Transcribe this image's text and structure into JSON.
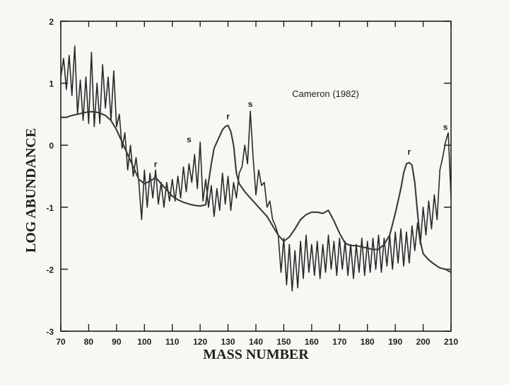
{
  "chart_data": {
    "type": "line",
    "title": "",
    "xlabel": "MASS NUMBER",
    "ylabel": "LOG ABUNDANCE",
    "xlim": [
      70,
      210
    ],
    "ylim": [
      -3,
      2
    ],
    "x_ticks": [
      "70",
      "80",
      "90",
      "100",
      "110",
      "120",
      "130",
      "140",
      "150",
      "160",
      "170",
      "180",
      "190",
      "200",
      "210"
    ],
    "y_ticks": [
      "2",
      "1",
      "0",
      "-1",
      "-2",
      "-3"
    ],
    "grid": false,
    "annotation": "Cameron (1982)",
    "peak_labels": [
      {
        "text": "r",
        "x": 104,
        "y": -0.35
      },
      {
        "text": "s",
        "x": 116,
        "y": 0.05
      },
      {
        "text": "r",
        "x": 130,
        "y": 0.42
      },
      {
        "text": "s",
        "x": 138,
        "y": 0.62
      },
      {
        "text": "r",
        "x": 195,
        "y": -0.15
      },
      {
        "text": "s",
        "x": 208,
        "y": 0.25
      }
    ],
    "series": [
      {
        "color": "#2a2a2a",
        "points": [
          [
            70,
            1.1
          ],
          [
            71,
            1.4
          ],
          [
            72,
            0.9
          ],
          [
            73,
            1.45
          ],
          [
            74,
            0.8
          ],
          [
            75,
            1.6
          ],
          [
            76,
            0.5
          ],
          [
            77,
            1.05
          ],
          [
            78,
            0.4
          ],
          [
            79,
            1.1
          ],
          [
            80,
            0.35
          ],
          [
            81,
            1.5
          ],
          [
            82,
            0.3
          ],
          [
            83,
            1.0
          ],
          [
            84,
            0.35
          ],
          [
            85,
            1.3
          ],
          [
            86,
            0.6
          ],
          [
            87,
            1.1
          ],
          [
            88,
            0.4
          ],
          [
            89,
            1.2
          ],
          [
            90,
            0.3
          ],
          [
            91,
            0.5
          ],
          [
            92,
            -0.05
          ],
          [
            93,
            0.2
          ],
          [
            94,
            -0.4
          ],
          [
            95,
            0.0
          ],
          [
            96,
            -0.5
          ],
          [
            97,
            -0.2
          ],
          [
            98,
            -0.6
          ],
          [
            99,
            -1.2
          ],
          [
            100,
            -0.4
          ],
          [
            101,
            -1.0
          ],
          [
            102,
            -0.45
          ],
          [
            103,
            -0.85
          ],
          [
            104,
            -0.4
          ],
          [
            105,
            -0.95
          ],
          [
            106,
            -0.6
          ],
          [
            107,
            -1.0
          ],
          [
            108,
            -0.6
          ],
          [
            109,
            -0.9
          ],
          [
            110,
            -0.55
          ],
          [
            111,
            -0.9
          ],
          [
            112,
            -0.5
          ],
          [
            113,
            -0.85
          ],
          [
            114,
            -0.35
          ],
          [
            115,
            -0.75
          ],
          [
            116,
            -0.3
          ],
          [
            117,
            -0.6
          ],
          [
            118,
            -0.15
          ],
          [
            119,
            -0.7
          ],
          [
            120,
            0.05
          ],
          [
            121,
            -0.9
          ],
          [
            122,
            -0.55
          ],
          [
            123,
            -1.0
          ],
          [
            124,
            -0.65
          ],
          [
            125,
            -1.15
          ],
          [
            126,
            -0.7
          ],
          [
            127,
            -1.05
          ],
          [
            128,
            -0.45
          ],
          [
            129,
            -0.95
          ],
          [
            130,
            -0.5
          ],
          [
            131,
            -1.05
          ],
          [
            132,
            -0.6
          ],
          [
            133,
            -0.85
          ],
          [
            134,
            -0.45
          ],
          [
            135,
            -0.35
          ],
          [
            136,
            0.0
          ],
          [
            137,
            -0.3
          ],
          [
            138,
            0.55
          ],
          [
            139,
            -0.2
          ],
          [
            140,
            -0.8
          ],
          [
            141,
            -0.4
          ],
          [
            142,
            -0.65
          ],
          [
            143,
            -0.6
          ],
          [
            144,
            -1.0
          ],
          [
            145,
            -0.9
          ],
          [
            146,
            -1.2
          ],
          [
            147,
            -1.3
          ],
          [
            148,
            -1.45
          ],
          [
            149,
            -2.05
          ],
          [
            150,
            -1.5
          ],
          [
            151,
            -2.25
          ],
          [
            152,
            -1.6
          ],
          [
            153,
            -2.35
          ],
          [
            154,
            -1.7
          ],
          [
            155,
            -2.3
          ],
          [
            156,
            -1.55
          ],
          [
            157,
            -2.15
          ],
          [
            158,
            -1.45
          ],
          [
            159,
            -2.05
          ],
          [
            160,
            -1.6
          ],
          [
            161,
            -2.1
          ],
          [
            162,
            -1.55
          ],
          [
            163,
            -2.15
          ],
          [
            164,
            -1.6
          ],
          [
            165,
            -2.05
          ],
          [
            166,
            -1.45
          ],
          [
            167,
            -2.0
          ],
          [
            168,
            -1.55
          ],
          [
            169,
            -2.1
          ],
          [
            170,
            -1.5
          ],
          [
            171,
            -2.0
          ],
          [
            172,
            -1.55
          ],
          [
            173,
            -2.1
          ],
          [
            174,
            -1.6
          ],
          [
            175,
            -2.15
          ],
          [
            176,
            -1.6
          ],
          [
            177,
            -2.05
          ],
          [
            178,
            -1.5
          ],
          [
            179,
            -2.1
          ],
          [
            180,
            -1.55
          ],
          [
            181,
            -2.05
          ],
          [
            182,
            -1.5
          ],
          [
            183,
            -2.0
          ],
          [
            184,
            -1.45
          ],
          [
            185,
            -2.05
          ],
          [
            186,
            -1.5
          ],
          [
            187,
            -1.95
          ],
          [
            188,
            -1.45
          ],
          [
            189,
            -2.0
          ],
          [
            190,
            -1.4
          ],
          [
            191,
            -1.9
          ],
          [
            192,
            -1.35
          ],
          [
            193,
            -1.95
          ],
          [
            194,
            -1.4
          ],
          [
            195,
            -1.9
          ],
          [
            196,
            -1.3
          ],
          [
            197,
            -1.7
          ],
          [
            198,
            -1.25
          ],
          [
            199,
            -1.6
          ],
          [
            200,
            -1.0
          ],
          [
            201,
            -1.45
          ],
          [
            202,
            -0.9
          ],
          [
            203,
            -1.35
          ],
          [
            204,
            -0.8
          ],
          [
            205,
            -1.2
          ],
          [
            206,
            -0.4
          ],
          [
            207,
            -0.2
          ],
          [
            208,
            0.05
          ],
          [
            209,
            0.2
          ],
          [
            210,
            -0.85
          ]
        ]
      },
      {
        "color": "#3a3a3a",
        "points": [
          [
            70,
            0.45
          ],
          [
            72,
            0.45
          ],
          [
            74,
            0.48
          ],
          [
            76,
            0.5
          ],
          [
            78,
            0.52
          ],
          [
            80,
            0.54
          ],
          [
            82,
            0.54
          ],
          [
            84,
            0.52
          ],
          [
            86,
            0.48
          ],
          [
            88,
            0.4
          ],
          [
            90,
            0.25
          ],
          [
            92,
            0.05
          ],
          [
            94,
            -0.15
          ],
          [
            96,
            -0.35
          ],
          [
            98,
            -0.55
          ],
          [
            100,
            -0.62
          ],
          [
            102,
            -0.58
          ],
          [
            104,
            -0.52
          ],
          [
            106,
            -0.62
          ],
          [
            108,
            -0.72
          ],
          [
            110,
            -0.82
          ],
          [
            112,
            -0.88
          ],
          [
            114,
            -0.92
          ],
          [
            116,
            -0.95
          ],
          [
            118,
            -0.97
          ],
          [
            120,
            -0.98
          ],
          [
            122,
            -0.96
          ],
          [
            123,
            -0.6
          ],
          [
            124,
            -0.3
          ],
          [
            125,
            -0.05
          ],
          [
            126,
            0.05
          ],
          [
            127,
            0.15
          ],
          [
            128,
            0.25
          ],
          [
            129,
            0.3
          ],
          [
            130,
            0.32
          ],
          [
            131,
            0.22
          ],
          [
            132,
            0.0
          ],
          [
            133,
            -0.45
          ],
          [
            134,
            -0.62
          ],
          [
            136,
            -0.75
          ],
          [
            138,
            -0.85
          ],
          [
            140,
            -0.95
          ],
          [
            142,
            -1.05
          ],
          [
            144,
            -1.15
          ],
          [
            146,
            -1.3
          ],
          [
            148,
            -1.45
          ],
          [
            150,
            -1.55
          ],
          [
            152,
            -1.48
          ],
          [
            154,
            -1.35
          ],
          [
            156,
            -1.2
          ],
          [
            158,
            -1.12
          ],
          [
            160,
            -1.08
          ],
          [
            162,
            -1.08
          ],
          [
            164,
            -1.1
          ],
          [
            166,
            -1.05
          ],
          [
            168,
            -1.22
          ],
          [
            170,
            -1.42
          ],
          [
            172,
            -1.58
          ],
          [
            174,
            -1.62
          ],
          [
            176,
            -1.62
          ],
          [
            178,
            -1.64
          ],
          [
            180,
            -1.66
          ],
          [
            182,
            -1.68
          ],
          [
            184,
            -1.68
          ],
          [
            186,
            -1.6
          ],
          [
            188,
            -1.45
          ],
          [
            190,
            -1.1
          ],
          [
            192,
            -0.7
          ],
          [
            193,
            -0.45
          ],
          [
            194,
            -0.3
          ],
          [
            195,
            -0.28
          ],
          [
            196,
            -0.32
          ],
          [
            197,
            -0.6
          ],
          [
            198,
            -1.1
          ],
          [
            199,
            -1.55
          ],
          [
            200,
            -1.75
          ],
          [
            202,
            -1.85
          ],
          [
            204,
            -1.92
          ],
          [
            206,
            -1.98
          ],
          [
            208,
            -2.0
          ],
          [
            210,
            -2.05
          ]
        ]
      }
    ]
  }
}
